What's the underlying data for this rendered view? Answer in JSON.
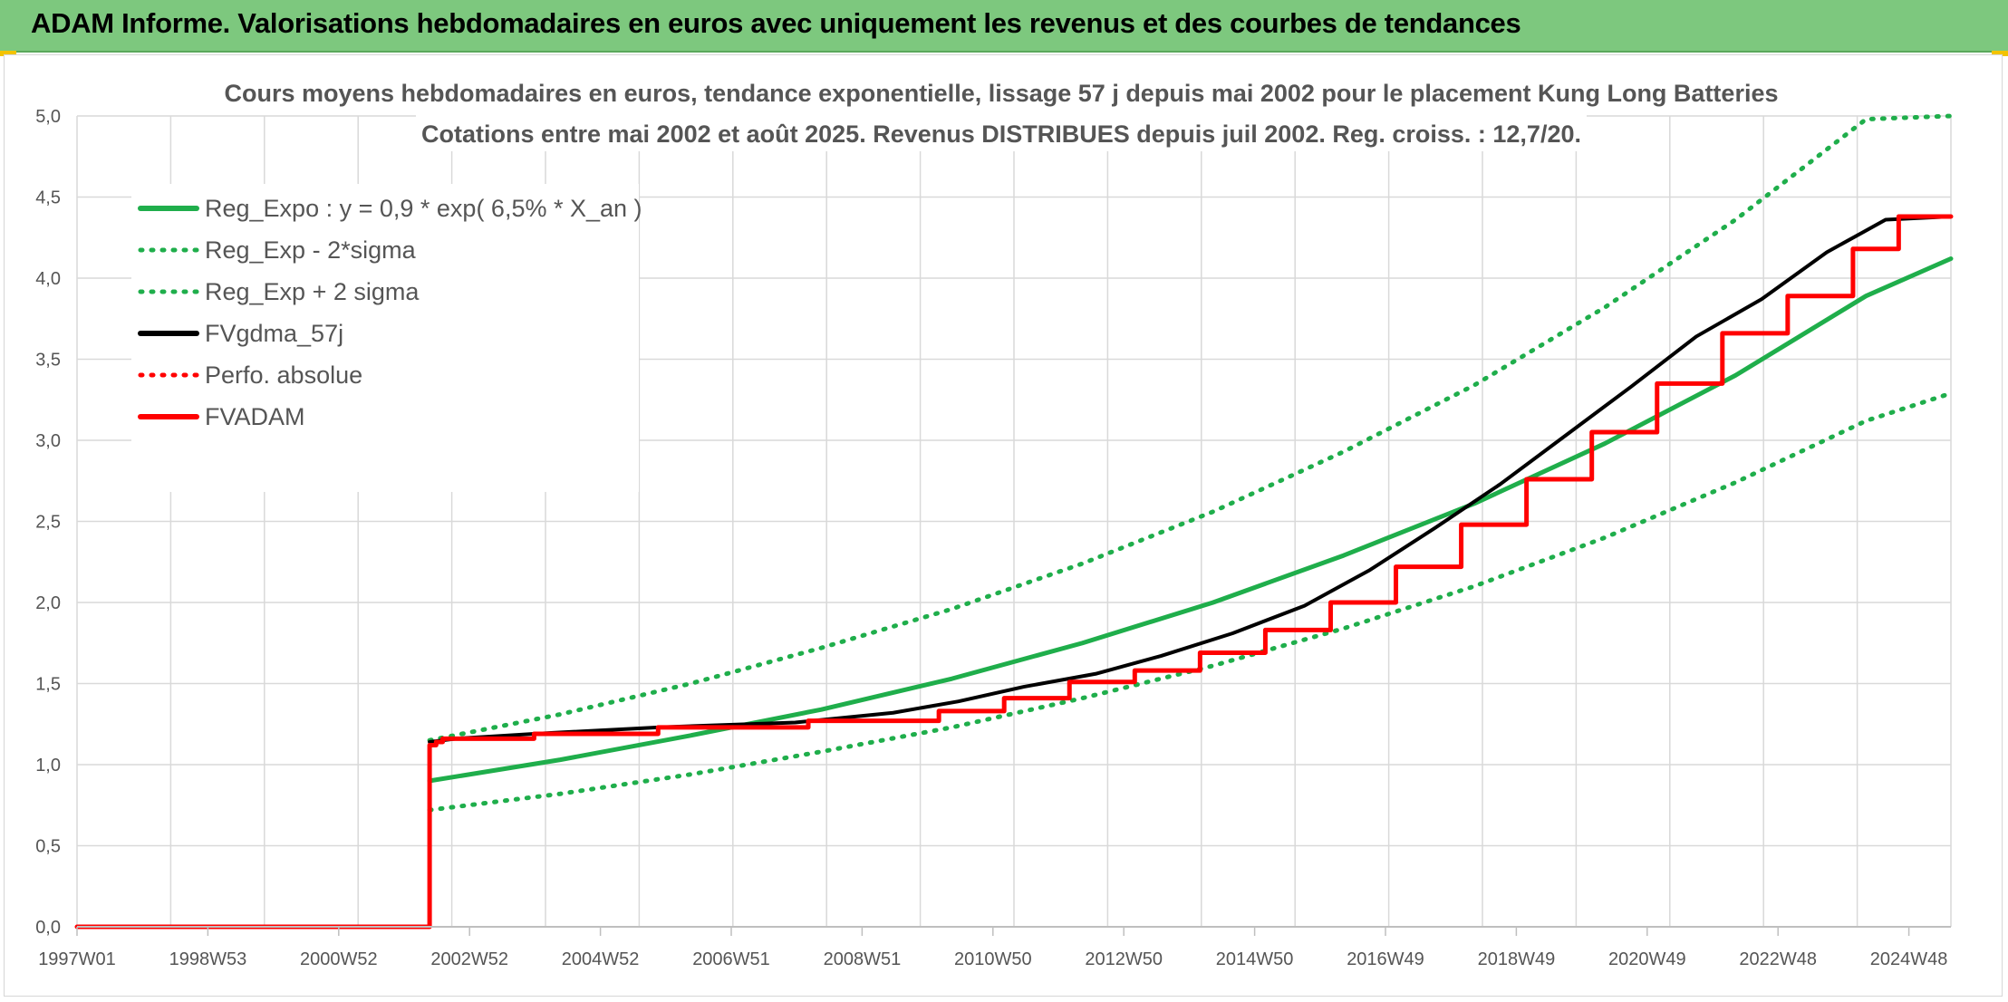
{
  "header": {
    "title": "ADAM Informe. Valorisations hebdomadaires en euros avec uniquement les revenus et des courbes de tendances"
  },
  "colors": {
    "header_bg": "#7dc87e",
    "green": "#1fae4b",
    "black": "#000000",
    "red": "#ff0000",
    "grid": "#d9d9d9"
  },
  "chart_data": {
    "type": "line",
    "title": [
      "Cours moyens hebdomadaires en euros, tendance exponentielle, lissage 57 j depuis mai 2002 pour le placement Kung Long Batteries",
      "Cotations entre mai 2002 et août 2025. Revenus DISTRIBUES depuis juil 2002. Reg. croiss. : 12,7/20."
    ],
    "xlabel": "",
    "ylabel": "",
    "x_tick_labels": [
      "1997W01",
      "1998W53",
      "2000W52",
      "2002W52",
      "2004W52",
      "2006W51",
      "2008W51",
      "2010W50",
      "2012W50",
      "2014W50",
      "2016W49",
      "2018W49",
      "2020W49",
      "2022W48",
      "2024W48"
    ],
    "y_tick_labels": [
      "0,0",
      "0,5",
      "1,0",
      "1,5",
      "2,0",
      "2,5",
      "3,0",
      "3,5",
      "4,0",
      "4,5",
      "5,0"
    ],
    "ylim": [
      0,
      5
    ],
    "xlim": [
      1997.0,
      2025.7
    ],
    "grid": true,
    "legend_position": "top-left",
    "series": [
      {
        "name": "Reg_Expo : y = 0,9 * exp( 6,5% *  X_an )",
        "color": "#1fae4b",
        "style": "solid",
        "points": [
          [
            2002.4,
            0.9
          ],
          [
            2004.4,
            1.03
          ],
          [
            2006.4,
            1.18
          ],
          [
            2008.4,
            1.34
          ],
          [
            2010.4,
            1.53
          ],
          [
            2012.4,
            1.75
          ],
          [
            2014.4,
            2.0
          ],
          [
            2016.4,
            2.29
          ],
          [
            2018.4,
            2.61
          ],
          [
            2020.4,
            2.98
          ],
          [
            2022.4,
            3.4
          ],
          [
            2024.4,
            3.89
          ],
          [
            2025.7,
            4.12
          ]
        ]
      },
      {
        "name": "Reg_Exp - 2*sigma",
        "color": "#1fae4b",
        "style": "dotted",
        "points": [
          [
            2002.4,
            0.72
          ],
          [
            2004.4,
            0.82
          ],
          [
            2006.4,
            0.94
          ],
          [
            2008.4,
            1.08
          ],
          [
            2010.4,
            1.23
          ],
          [
            2012.4,
            1.41
          ],
          [
            2014.4,
            1.61
          ],
          [
            2016.4,
            1.84
          ],
          [
            2018.4,
            2.1
          ],
          [
            2020.4,
            2.4
          ],
          [
            2022.4,
            2.74
          ],
          [
            2024.4,
            3.12
          ],
          [
            2025.7,
            3.29
          ]
        ]
      },
      {
        "name": "Reg_Exp + 2 sigma",
        "color": "#1fae4b",
        "style": "dotted",
        "points": [
          [
            2002.4,
            1.15
          ],
          [
            2004.4,
            1.31
          ],
          [
            2006.4,
            1.5
          ],
          [
            2008.4,
            1.72
          ],
          [
            2010.4,
            1.96
          ],
          [
            2012.4,
            2.24
          ],
          [
            2014.4,
            2.56
          ],
          [
            2016.4,
            2.93
          ],
          [
            2018.4,
            3.34
          ],
          [
            2020.4,
            3.82
          ],
          [
            2022.4,
            4.36
          ],
          [
            2024.4,
            4.98
          ],
          [
            2025.7,
            5.0
          ]
        ]
      },
      {
        "name": "FVgdma_57j",
        "color": "#000000",
        "style": "solid",
        "points": [
          [
            2002.4,
            1.14
          ],
          [
            2002.8,
            1.16
          ],
          [
            2004.0,
            1.19
          ],
          [
            2005.9,
            1.23
          ],
          [
            2008.0,
            1.26
          ],
          [
            2009.5,
            1.32
          ],
          [
            2010.5,
            1.39
          ],
          [
            2011.5,
            1.48
          ],
          [
            2012.6,
            1.56
          ],
          [
            2013.6,
            1.67
          ],
          [
            2014.7,
            1.81
          ],
          [
            2015.8,
            1.98
          ],
          [
            2016.8,
            2.2
          ],
          [
            2017.8,
            2.46
          ],
          [
            2018.8,
            2.73
          ],
          [
            2019.8,
            3.03
          ],
          [
            2020.8,
            3.33
          ],
          [
            2021.8,
            3.64
          ],
          [
            2022.8,
            3.87
          ],
          [
            2023.8,
            4.16
          ],
          [
            2024.7,
            4.36
          ],
          [
            2025.7,
            4.38
          ]
        ]
      },
      {
        "name": "Perfo. absolue",
        "color": "#ff0000",
        "style": "dotted",
        "points": []
      },
      {
        "name": "FVADAM",
        "color": "#ff0000",
        "style": "solid",
        "steps": [
          [
            1997.0,
            0.0
          ],
          [
            2002.4,
            1.12
          ],
          [
            2002.5,
            1.14
          ],
          [
            2002.6,
            1.16
          ],
          [
            2004.0,
            1.19
          ],
          [
            2005.9,
            1.23
          ],
          [
            2008.2,
            1.27
          ],
          [
            2010.2,
            1.33
          ],
          [
            2011.2,
            1.41
          ],
          [
            2012.2,
            1.51
          ],
          [
            2013.2,
            1.58
          ],
          [
            2014.2,
            1.69
          ],
          [
            2015.2,
            1.83
          ],
          [
            2016.2,
            2.0
          ],
          [
            2017.2,
            2.22
          ],
          [
            2018.2,
            2.48
          ],
          [
            2019.2,
            2.76
          ],
          [
            2020.2,
            3.05
          ],
          [
            2021.2,
            3.35
          ],
          [
            2022.2,
            3.66
          ],
          [
            2023.2,
            3.89
          ],
          [
            2024.2,
            4.18
          ],
          [
            2024.9,
            4.38
          ],
          [
            2025.7,
            4.38
          ]
        ]
      }
    ]
  }
}
